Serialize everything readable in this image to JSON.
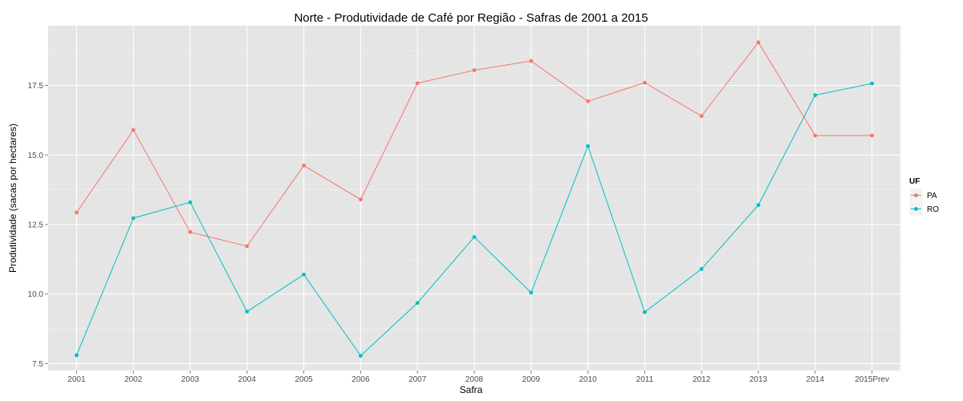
{
  "chart_data": {
    "type": "line",
    "title": "Norte  - Produtividade de Café por Região - Safras de 2001 a 2015",
    "xlabel": "Safra",
    "ylabel": "Produtividade (sacas por hectares)",
    "categories": [
      "2001",
      "2002",
      "2003",
      "2004",
      "2005",
      "2006",
      "2007",
      "2008",
      "2009",
      "2010",
      "2011",
      "2012",
      "2013",
      "2014",
      "2015Prev"
    ],
    "ylim": [
      7.25,
      19.65
    ],
    "yticks": [
      7.5,
      10.0,
      12.5,
      15.0,
      17.5
    ],
    "ytick_labels": [
      "7.5",
      "10.0",
      "12.5",
      "15.0",
      "17.5"
    ],
    "grid": true,
    "legend": {
      "title": "UF",
      "position": "right"
    },
    "series": [
      {
        "name": "PA",
        "color": "#F8766D",
        "values": [
          12.93,
          15.9,
          12.23,
          11.72,
          14.62,
          13.4,
          17.58,
          18.05,
          18.38,
          16.93,
          17.6,
          16.4,
          19.05,
          15.7,
          15.7
        ]
      },
      {
        "name": "RO",
        "color": "#00BFC4",
        "values": [
          7.8,
          12.73,
          13.3,
          9.37,
          10.7,
          7.78,
          9.68,
          12.05,
          10.05,
          15.32,
          9.35,
          10.9,
          13.2,
          17.15,
          17.57
        ]
      }
    ]
  }
}
